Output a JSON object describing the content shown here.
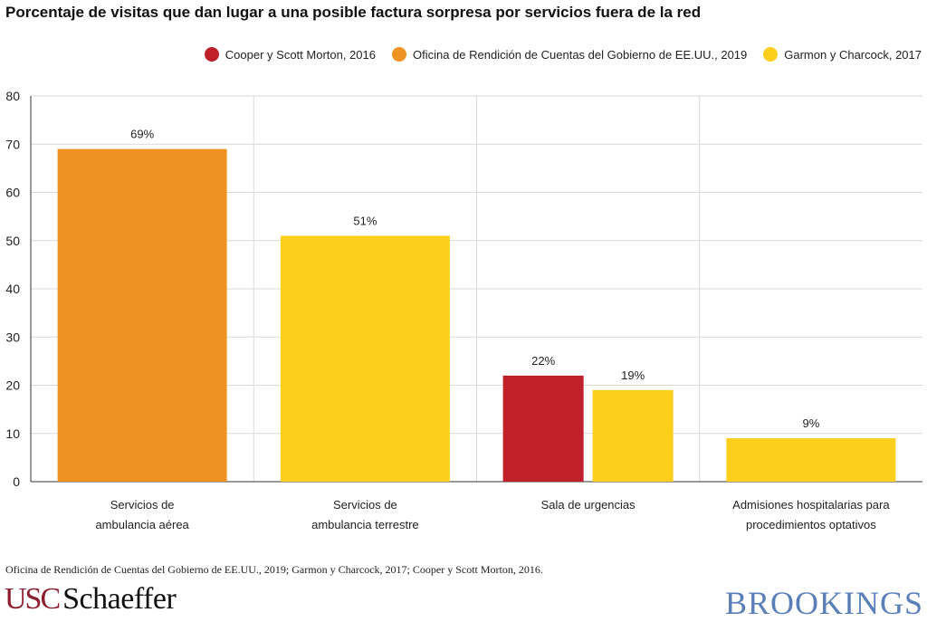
{
  "title": "Porcentaje de visitas que dan lugar a una posible factura sorpresa por servicios fuera de la red",
  "source": "Oficina de Rendición de Cuentas del Gobierno de EE.UU., 2019; Garmon y Charcock, 2017; Cooper y Scott Morton, 2016.",
  "logos": {
    "usc_part": "USC",
    "schaeffer_part": "Schaeffer",
    "brookings": "BROOKINGS"
  },
  "colors": {
    "red": "#c0202a",
    "orange": "#ee9322",
    "yellow": "#fbcf1b",
    "grid": "#d9d9d9",
    "axis": "#333333",
    "brookings": "#5a7fb8",
    "usc": "#8c1d2e"
  },
  "chart_data": {
    "type": "bar",
    "title": "Porcentaje de visitas que dan lugar a una posible factura sorpresa por servicios fuera de la red",
    "xlabel": "",
    "ylabel": "",
    "ylim": [
      0,
      80
    ],
    "yticks": [
      0,
      10,
      20,
      30,
      40,
      50,
      60,
      70,
      80
    ],
    "legend_position": "top-right",
    "series": [
      {
        "name": "Cooper y Scott Morton, 2016",
        "color": "#c0202a"
      },
      {
        "name": "Oficina de Rendición de Cuentas del Gobierno de EE.UU., 2019",
        "color": "#ee9322"
      },
      {
        "name": "Garmon y Charcock, 2017",
        "color": "#fbcf1b"
      }
    ],
    "categories": [
      {
        "label_lines": [
          "Servicios de",
          "ambulancia aérea"
        ],
        "bars": [
          {
            "series": 1,
            "value": 69,
            "label": "69%"
          }
        ]
      },
      {
        "label_lines": [
          "Servicios de",
          "ambulancia terrestre"
        ],
        "bars": [
          {
            "series": 2,
            "value": 51,
            "label": "51%"
          }
        ]
      },
      {
        "label_lines": [
          "Sala de urgencias"
        ],
        "bars": [
          {
            "series": 0,
            "value": 22,
            "label": "22%"
          },
          {
            "series": 2,
            "value": 19,
            "label": "19%"
          }
        ]
      },
      {
        "label_lines": [
          "Admisiones hospitalarias para",
          "procedimientos optativos"
        ],
        "bars": [
          {
            "series": 2,
            "value": 9,
            "label": "9%"
          }
        ]
      }
    ]
  }
}
